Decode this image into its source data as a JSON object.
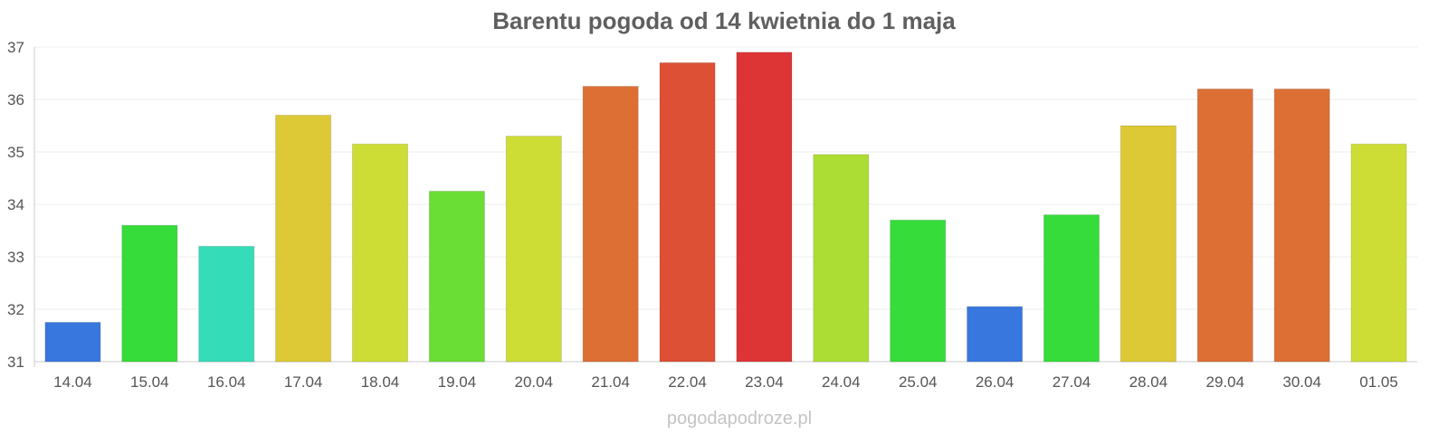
{
  "chart_data": {
    "type": "bar",
    "title": "Barentu pogoda od 14 kwietnia do 1 maja",
    "xlabel": "",
    "ylabel": "",
    "ylim": [
      31,
      37
    ],
    "yticks": [
      "31",
      "32",
      "33",
      "34",
      "35",
      "36",
      "37"
    ],
    "grid": true,
    "categories": [
      "14.04",
      "15.04",
      "16.04",
      "17.04",
      "18.04",
      "19.04",
      "20.04",
      "21.04",
      "22.04",
      "23.04",
      "24.04",
      "25.04",
      "26.04",
      "27.04",
      "28.04",
      "29.04",
      "30.04",
      "01.05"
    ],
    "values": [
      31.75,
      33.6,
      33.2,
      35.7,
      35.15,
      34.25,
      35.3,
      36.25,
      36.7,
      36.9,
      34.95,
      33.7,
      32.05,
      33.8,
      35.5,
      36.2,
      36.2,
      35.15
    ],
    "colors": [
      "#3877dd",
      "#35dc3a",
      "#35dcb8",
      "#dcc935",
      "#cddd35",
      "#6ade35",
      "#cddd35",
      "#dd6f35",
      "#dd5035",
      "#dd3535",
      "#acdd35",
      "#35dc3a",
      "#3877dd",
      "#35dc3a",
      "#dcc935",
      "#dd6f35",
      "#dd6f35",
      "#cddd35"
    ]
  },
  "watermark": "pogodapodroze.pl"
}
